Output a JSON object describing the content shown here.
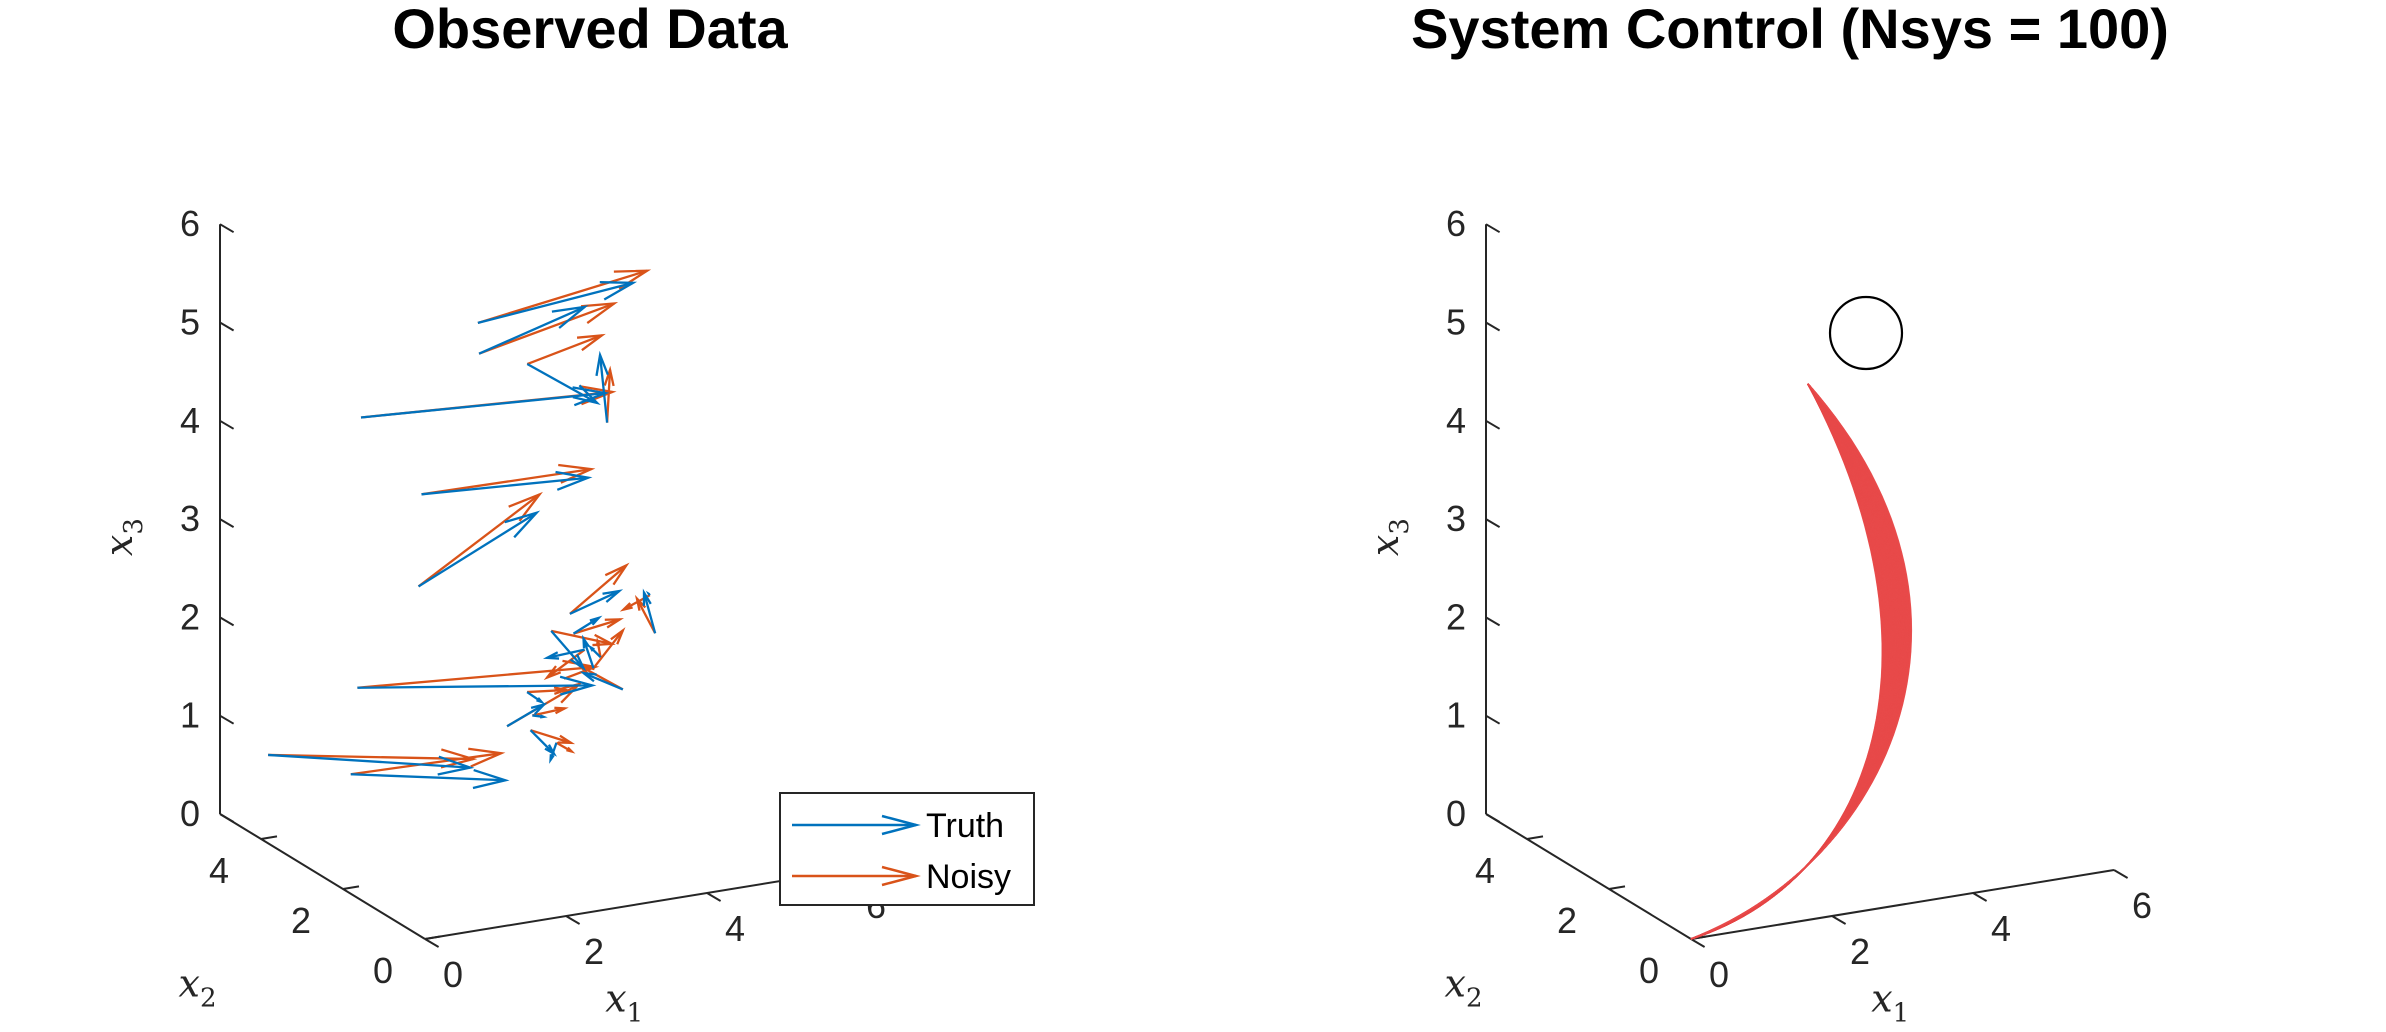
{
  "chart_data": [
    {
      "type": "quiver3d",
      "title": "Observed Data",
      "xlabel": "x1",
      "ylabel": "x2",
      "zlabel": "x3",
      "xticks": [
        "0",
        "2",
        "4",
        "6"
      ],
      "yticks": [
        "0",
        "2",
        "4"
      ],
      "zticks": [
        "0",
        "1",
        "2",
        "3",
        "4",
        "5",
        "6"
      ],
      "xlim": [
        0,
        6
      ],
      "ylim": [
        0,
        5
      ],
      "zlim": [
        0,
        6
      ],
      "grid": false,
      "legend_position": "bottom-right",
      "colors": {
        "truth": "#0072BD",
        "noisy": "#D95319"
      },
      "series": [
        {
          "name": "Truth",
          "color": "#0072BD",
          "arrows": [
            [
              0.45,
              4.6,
              0.65,
              3.2,
              4.4,
              0.25
            ],
            [
              0.75,
              3.1,
              0.8,
              3.0,
              3.2,
              0.45
            ],
            [
              1.6,
              4.4,
              1.25,
              4.0,
              2.8,
              1.4
            ],
            [
              2.0,
              5.0,
              3.8,
              5.0,
              4.2,
              3.9
            ],
            [
              2.7,
              4.8,
              2.05,
              4.2,
              4.5,
              2.7
            ],
            [
              2.8,
              4.9,
              2.95,
              4.7,
              4.1,
              3.1
            ],
            [
              3.6,
              4.9,
              4.6,
              5.8,
              4.9,
              4.75
            ],
            [
              3.5,
              4.7,
              4.35,
              5.0,
              4.7,
              4.65
            ],
            [
              4.3,
              4.9,
              4.1,
              5.0,
              4.4,
              3.75
            ],
            [
              3.8,
              3.0,
              2.1,
              4.5,
              3.0,
              2.25
            ],
            [
              4.0,
              3.8,
              1.7,
              4.4,
              3.7,
              1.3
            ],
            [
              3.2,
              3.5,
              0.9,
              3.2,
              2.6,
              1.35
            ],
            [
              3.3,
              3.1,
              0.95,
              3.4,
              2.7,
              0.8
            ],
            [
              3.6,
              3.7,
              1.15,
              3.4,
              3.0,
              1.25
            ],
            [
              4.2,
              3.6,
              1.7,
              4.5,
              3.5,
              1.85
            ],
            [
              4.6,
              3.8,
              1.25,
              4.4,
              3.7,
              1.6
            ],
            [
              5.2,
              4.5,
              3.5,
              5.1,
              4.5,
              4.2
            ],
            [
              5.4,
              3.8,
              1.9,
              5.5,
              4.0,
              1.85
            ],
            [
              5.3,
              3.5,
              1.6,
              5.2,
              3.6,
              2.0
            ],
            [
              4.9,
              3.6,
              1.05,
              4.4,
              3.7,
              1.25
            ],
            [
              4.3,
              3.5,
              1.55,
              4.0,
              3.9,
              1.4
            ],
            [
              4.7,
              3.8,
              1.35,
              4.5,
              3.7,
              1.5
            ],
            [
              3.9,
              3.5,
              0.65,
              3.7,
              3.3,
              0.55
            ],
            [
              3.5,
              3.4,
              1.0,
              3.6,
              3.3,
              1.0
            ]
          ]
        },
        {
          "name": "Noisy",
          "color": "#D95319",
          "arrows": [
            [
              0.45,
              4.6,
              0.65,
              3.3,
              4.5,
              0.3
            ],
            [
              0.75,
              3.1,
              0.8,
              3.0,
              3.3,
              0.7
            ],
            [
              1.6,
              4.4,
              1.25,
              4.1,
              2.9,
              1.55
            ],
            [
              2.0,
              5.0,
              3.8,
              5.1,
              4.2,
              3.9
            ],
            [
              2.7,
              4.8,
              2.05,
              4.3,
              4.6,
              2.85
            ],
            [
              2.8,
              4.9,
              2.95,
              4.8,
              4.2,
              3.15
            ],
            [
              3.6,
              4.9,
              4.6,
              6.0,
              4.9,
              4.85
            ],
            [
              3.5,
              4.7,
              4.35,
              5.3,
              4.5,
              4.7
            ],
            [
              4.3,
              4.9,
              4.1,
              5.3,
              4.8,
              4.3
            ],
            [
              3.8,
              3.0,
              2.1,
              4.6,
              3.0,
              2.5
            ],
            [
              4.0,
              3.8,
              1.7,
              4.8,
              3.7,
              1.5
            ],
            [
              3.2,
              3.5,
              0.9,
              3.7,
              2.6,
              1.5
            ],
            [
              3.3,
              3.1,
              0.95,
              3.7,
              2.8,
              0.85
            ],
            [
              3.6,
              3.7,
              1.15,
              3.8,
              3.1,
              1.3
            ],
            [
              4.2,
              3.6,
              1.7,
              4.8,
              3.5,
              1.8
            ],
            [
              4.6,
              3.8,
              1.25,
              4.9,
              3.6,
              1.65
            ],
            [
              5.2,
              4.5,
              3.5,
              5.3,
              4.6,
              4.0
            ],
            [
              5.4,
              3.8,
              1.9,
              5.2,
              4.1,
              1.7
            ],
            [
              5.3,
              3.5,
              1.6,
              5.1,
              3.6,
              1.95
            ],
            [
              4.9,
              3.6,
              1.05,
              4.4,
              3.8,
              1.3
            ],
            [
              4.3,
              3.5,
              1.55,
              4.0,
              3.9,
              1.2
            ],
            [
              4.7,
              3.8,
              1.35,
              4.6,
              3.7,
              1.55
            ],
            [
              3.9,
              3.5,
              0.65,
              4.0,
              3.3,
              0.6
            ],
            [
              3.5,
              3.4,
              1.0,
              3.9,
              3.3,
              1.05
            ]
          ]
        }
      ],
      "legend": [
        {
          "label": "Truth",
          "color": "#0072BD"
        },
        {
          "label": "Noisy",
          "color": "#D95319"
        }
      ]
    },
    {
      "type": "line3d",
      "title": "System Control (Nsys = 100)",
      "xlabel": "x1",
      "ylabel": "x2",
      "zlabel": "x3",
      "xticks": [
        "0",
        "2",
        "4",
        "6"
      ],
      "yticks": [
        "0",
        "2",
        "4"
      ],
      "zticks": [
        "0",
        "1",
        "2",
        "3",
        "4",
        "5",
        "6"
      ],
      "xlim": [
        0,
        6
      ],
      "ylim": [
        0,
        5
      ],
      "zlim": [
        0,
        6
      ],
      "grid": false,
      "line_color": "#E84A4A",
      "n_trajectories": 100,
      "start": [
        0,
        0,
        0
      ],
      "target": [
        4.1,
        4.2,
        4.1
      ],
      "target_marker": "circle"
    }
  ]
}
